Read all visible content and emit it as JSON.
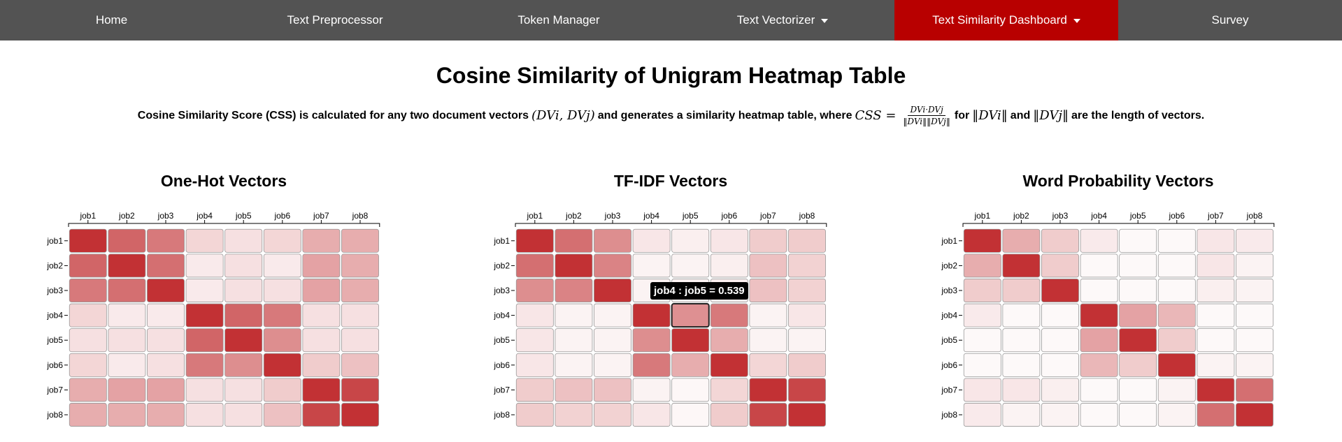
{
  "nav": {
    "items": [
      {
        "label": "Home",
        "has_caret": false,
        "active": false
      },
      {
        "label": "Text Preprocessor",
        "has_caret": false,
        "active": false
      },
      {
        "label": "Token Manager",
        "has_caret": false,
        "active": false
      },
      {
        "label": "Text Vectorizer",
        "has_caret": true,
        "active": false
      },
      {
        "label": "Text Similarity Dashboard",
        "has_caret": true,
        "active": true
      },
      {
        "label": "Survey",
        "has_caret": false,
        "active": false
      }
    ],
    "bg_color": "#535353",
    "active_color": "#b80000"
  },
  "page_title": "Cosine Similarity of Unigram Heatmap Table",
  "description": {
    "part1": "Cosine Similarity Score (CSS) is calculated for any two document vectors",
    "math1": "(DVi, DVj)",
    "part2": "and generates a similarity heatmap table, where",
    "math2": "CSS =",
    "frac_num": "DVi·DVj",
    "frac_den": "‖DVi‖‖DVj‖",
    "part3": "for",
    "math3": "‖DVi‖",
    "part4": "and",
    "math4": "‖DVj‖",
    "part5": "are the length of vectors."
  },
  "tooltip": "job4 : job5 = 0.539",
  "colors": {
    "high": "#c23134",
    "low": "#ffffff",
    "cell_stroke": "#999999",
    "highlight_stroke": "#222222"
  },
  "chart_data": [
    {
      "type": "heatmap",
      "title": "One-Hot Vectors",
      "x": [
        "job1",
        "job2",
        "job3",
        "job4",
        "job5",
        "job6",
        "job7",
        "job8"
      ],
      "y": [
        "job1",
        "job2",
        "job3",
        "job4",
        "job5",
        "job6",
        "job7",
        "job8"
      ],
      "values": [
        [
          1.0,
          0.75,
          0.65,
          0.2,
          0.15,
          0.2,
          0.4,
          0.4
        ],
        [
          0.75,
          1.0,
          0.7,
          0.1,
          0.15,
          0.1,
          0.45,
          0.4
        ],
        [
          0.65,
          0.7,
          1.0,
          0.1,
          0.15,
          0.15,
          0.45,
          0.4
        ],
        [
          0.2,
          0.1,
          0.1,
          1.0,
          0.75,
          0.65,
          0.15,
          0.15
        ],
        [
          0.15,
          0.15,
          0.15,
          0.75,
          1.0,
          0.55,
          0.15,
          0.15
        ],
        [
          0.2,
          0.1,
          0.15,
          0.65,
          0.55,
          1.0,
          0.25,
          0.3
        ],
        [
          0.4,
          0.45,
          0.45,
          0.15,
          0.15,
          0.25,
          1.0,
          0.9
        ],
        [
          0.4,
          0.4,
          0.4,
          0.15,
          0.15,
          0.3,
          0.9,
          1.0
        ]
      ]
    },
    {
      "type": "heatmap",
      "title": "TF-IDF Vectors",
      "x": [
        "job1",
        "job2",
        "job3",
        "job4",
        "job5",
        "job6",
        "job7",
        "job8"
      ],
      "y": [
        "job1",
        "job2",
        "job3",
        "job4",
        "job5",
        "job6",
        "job7",
        "job8"
      ],
      "values": [
        [
          1.0,
          0.7,
          0.55,
          0.12,
          0.08,
          0.12,
          0.25,
          0.25
        ],
        [
          0.7,
          1.0,
          0.6,
          0.06,
          0.06,
          0.08,
          0.3,
          0.22
        ],
        [
          0.55,
          0.6,
          1.0,
          0.06,
          0.06,
          0.08,
          0.3,
          0.22
        ],
        [
          0.12,
          0.06,
          0.06,
          1.0,
          0.539,
          0.65,
          0.06,
          0.12
        ],
        [
          0.12,
          0.06,
          0.06,
          0.55,
          1.0,
          0.4,
          0.06,
          0.06
        ],
        [
          0.12,
          0.06,
          0.06,
          0.65,
          0.4,
          1.0,
          0.2,
          0.25
        ],
        [
          0.25,
          0.3,
          0.3,
          0.06,
          0.04,
          0.2,
          1.0,
          0.9
        ],
        [
          0.25,
          0.22,
          0.22,
          0.12,
          0.04,
          0.25,
          0.9,
          1.0
        ]
      ]
    },
    {
      "type": "heatmap",
      "title": "Word Probability Vectors",
      "x": [
        "job1",
        "job2",
        "job3",
        "job4",
        "job5",
        "job6",
        "job7",
        "job8"
      ],
      "y": [
        "job1",
        "job2",
        "job3",
        "job4",
        "job5",
        "job6",
        "job7",
        "job8"
      ],
      "values": [
        [
          1.0,
          0.4,
          0.25,
          0.1,
          0.03,
          0.03,
          0.12,
          0.1
        ],
        [
          0.4,
          1.0,
          0.25,
          0.03,
          0.03,
          0.03,
          0.12,
          0.06
        ],
        [
          0.25,
          0.25,
          1.0,
          0.03,
          0.03,
          0.03,
          0.08,
          0.06
        ],
        [
          0.1,
          0.03,
          0.03,
          1.0,
          0.45,
          0.35,
          0.03,
          0.03
        ],
        [
          0.03,
          0.03,
          0.03,
          0.45,
          1.0,
          0.25,
          0.03,
          0.03
        ],
        [
          0.03,
          0.03,
          0.03,
          0.35,
          0.25,
          1.0,
          0.06,
          0.06
        ],
        [
          0.12,
          0.12,
          0.08,
          0.03,
          0.03,
          0.06,
          1.0,
          0.7
        ],
        [
          0.1,
          0.06,
          0.06,
          0.03,
          0.03,
          0.06,
          0.7,
          1.0
        ]
      ]
    }
  ]
}
